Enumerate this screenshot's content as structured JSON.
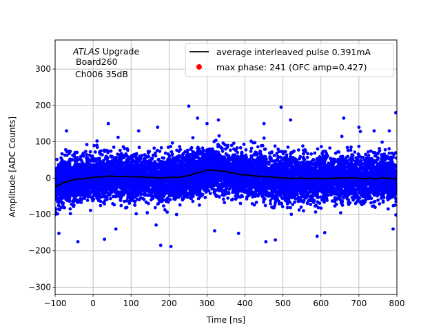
{
  "chart_data": {
    "type": "scatter",
    "title": "",
    "xlabel": "Time [ns]",
    "ylabel": "Amplitude [ADC Counts]",
    "xlim": [
      -100,
      800
    ],
    "ylim": [
      -320,
      380
    ],
    "xticks": [
      -100,
      0,
      100,
      200,
      300,
      400,
      500,
      600,
      700,
      800
    ],
    "yticks": [
      -300,
      -200,
      -100,
      0,
      100,
      200,
      300
    ],
    "xtick_labels": [
      "−100",
      "0",
      "100",
      "200",
      "300",
      "400",
      "500",
      "600",
      "700",
      "800"
    ],
    "ytick_labels": [
      "−300",
      "−200",
      "−100",
      "0",
      "100",
      "200",
      "300"
    ],
    "grid": true,
    "legend_position": "top-right",
    "annotation": {
      "atlas": "ATLAS",
      "upgrade": " Upgrade",
      "line2": "Board260",
      "line3": "Ch006 35dB"
    },
    "colors": {
      "scatter": "#0000ff",
      "average": "#000000",
      "max_phase": "#ff0000"
    },
    "series": [
      {
        "name": "average interleaved pulse 0.391mA",
        "kind": "line",
        "x": [
          -100,
          -90,
          -80,
          -70,
          -60,
          -50,
          -40,
          -30,
          -20,
          -10,
          0,
          20,
          40,
          60,
          80,
          100,
          120,
          140,
          160,
          180,
          200,
          220,
          240,
          250,
          260,
          270,
          280,
          290,
          300,
          310,
          320,
          330,
          340,
          350,
          360,
          380,
          400,
          420,
          440,
          460,
          480,
          500,
          520,
          540,
          560,
          580,
          600,
          620,
          640,
          660,
          680,
          700,
          720,
          740,
          760,
          780,
          800
        ],
        "y": [
          -25,
          -18,
          -14,
          -10,
          -7,
          -5,
          -3,
          -2,
          -1,
          0,
          2,
          4,
          5,
          5,
          4,
          4,
          3,
          2,
          1,
          1,
          1,
          2,
          4,
          7,
          10,
          13,
          16,
          19,
          21,
          22,
          22,
          21,
          19,
          17,
          15,
          12,
          9,
          7,
          5,
          4,
          2,
          1,
          0,
          0,
          -1,
          -1,
          -1,
          -1,
          0,
          0,
          0,
          0,
          -1,
          -1,
          0,
          -1,
          -2
        ]
      },
      {
        "name": "max phase: 241 (OFC amp=0.427)",
        "kind": "marker",
        "x": [],
        "y": []
      },
      {
        "name": "",
        "kind": "scatter-cloud",
        "x_range": [
          -100,
          800
        ],
        "count": 9000,
        "noise_sigma": 30,
        "outliers": [
          {
            "x": 252,
            "y": 198
          },
          {
            "x": 495,
            "y": 195
          },
          {
            "x": 797,
            "y": 180
          },
          {
            "x": -90,
            "y": -152
          },
          {
            "x": -40,
            "y": -175
          },
          {
            "x": 30,
            "y": -168
          },
          {
            "x": 178,
            "y": -185
          },
          {
            "x": 205,
            "y": -188
          },
          {
            "x": 455,
            "y": -175
          },
          {
            "x": 480,
            "y": -170
          },
          {
            "x": 590,
            "y": -160
          },
          {
            "x": 610,
            "y": -150
          },
          {
            "x": 790,
            "y": -140
          },
          {
            "x": 60,
            "y": -140
          },
          {
            "x": 320,
            "y": -145
          },
          {
            "x": 383,
            "y": -152
          },
          {
            "x": -70,
            "y": 130
          },
          {
            "x": 40,
            "y": 150
          },
          {
            "x": 120,
            "y": 130
          },
          {
            "x": 170,
            "y": 140
          },
          {
            "x": 275,
            "y": 165
          },
          {
            "x": 300,
            "y": 150
          },
          {
            "x": 330,
            "y": 160
          },
          {
            "x": 450,
            "y": 150
          },
          {
            "x": 520,
            "y": 160
          },
          {
            "x": 660,
            "y": 165
          },
          {
            "x": 700,
            "y": 140
          },
          {
            "x": 740,
            "y": 130
          },
          {
            "x": 780,
            "y": 130
          }
        ]
      }
    ]
  }
}
